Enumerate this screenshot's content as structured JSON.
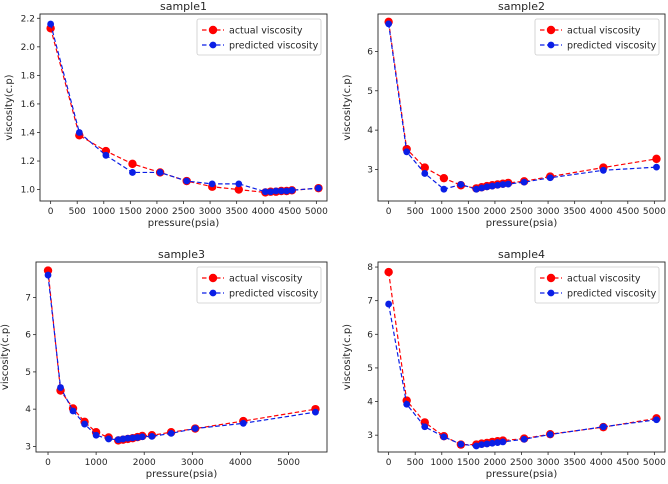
{
  "chart_data": [
    {
      "type": "line",
      "title": "sample1",
      "xlabel": "pressure(psia)",
      "ylabel": "viscosity(c.p)",
      "xlim": [
        -200,
        5200
      ],
      "ylim": [
        0.92,
        2.23
      ],
      "xticks": [
        0,
        500,
        1000,
        1500,
        2000,
        2500,
        3000,
        3500,
        4000,
        4500,
        5000
      ],
      "yticks": [
        1.0,
        1.2,
        1.4,
        1.6,
        1.8,
        2.0,
        2.2
      ],
      "ytick_decimals": 1,
      "legend_position": "top-right",
      "series": [
        {
          "name": "actual viscosity",
          "color": "#ff0000",
          "x": [
            0,
            540,
            1040,
            1540,
            2060,
            2560,
            3040,
            3540,
            4040,
            4140,
            4240,
            4340,
            4440,
            4540,
            5040
          ],
          "y": [
            2.13,
            1.38,
            1.27,
            1.18,
            1.12,
            1.06,
            1.02,
            1.0,
            0.98,
            0.985,
            0.985,
            0.99,
            0.99,
            0.995,
            1.01
          ]
        },
        {
          "name": "predicted viscosity",
          "color": "#0a1ee6",
          "x": [
            0,
            540,
            1040,
            1540,
            2060,
            2560,
            3040,
            3540,
            4040,
            4140,
            4240,
            4340,
            4440,
            4540,
            5040
          ],
          "y": [
            2.16,
            1.4,
            1.24,
            1.12,
            1.12,
            1.06,
            1.04,
            1.04,
            0.985,
            0.985,
            0.99,
            0.99,
            0.99,
            0.995,
            1.01
          ]
        }
      ]
    },
    {
      "type": "line",
      "title": "sample2",
      "xlabel": "pressure(psia)",
      "ylabel": "viscosity(c.p)",
      "xlim": [
        -200,
        5200
      ],
      "ylim": [
        2.2,
        6.95
      ],
      "xticks": [
        0,
        500,
        1000,
        1500,
        2000,
        2500,
        3000,
        3500,
        4000,
        4500,
        5000
      ],
      "yticks": [
        3,
        4,
        5,
        6
      ],
      "ytick_decimals": 0,
      "legend_position": "top-right",
      "series": [
        {
          "name": "actual viscosity",
          "color": "#ff0000",
          "x": [
            0,
            340,
            680,
            1040,
            1360,
            1650,
            1750,
            1850,
            1950,
            2050,
            2150,
            2250,
            2550,
            3040,
            4040,
            5040
          ],
          "y": [
            6.75,
            3.52,
            3.05,
            2.78,
            2.6,
            2.52,
            2.55,
            2.58,
            2.6,
            2.62,
            2.64,
            2.66,
            2.7,
            2.82,
            3.05,
            3.27
          ]
        },
        {
          "name": "predicted viscosity",
          "color": "#0a1ee6",
          "x": [
            0,
            340,
            680,
            1040,
            1360,
            1650,
            1750,
            1850,
            1950,
            2050,
            2150,
            2250,
            2550,
            3040,
            4040,
            5040
          ],
          "y": [
            6.7,
            3.45,
            2.9,
            2.5,
            2.62,
            2.5,
            2.53,
            2.56,
            2.58,
            2.6,
            2.62,
            2.63,
            2.68,
            2.79,
            2.98,
            3.06
          ]
        }
      ]
    },
    {
      "type": "line",
      "title": "sample3",
      "xlabel": "pressure(psia)",
      "ylabel": "viscosity(c.p)",
      "xlim": [
        -250,
        5800
      ],
      "ylim": [
        2.85,
        7.95
      ],
      "xticks": [
        0,
        1000,
        2000,
        3000,
        4000,
        5000
      ],
      "yticks": [
        3,
        4,
        5,
        6,
        7
      ],
      "ytick_decimals": 0,
      "legend_position": "top-right",
      "series": [
        {
          "name": "actual viscosity",
          "color": "#ff0000",
          "x": [
            0,
            260,
            520,
            760,
            1000,
            1260,
            1460,
            1560,
            1660,
            1760,
            1860,
            1960,
            2160,
            2560,
            3060,
            4060,
            5560
          ],
          "y": [
            7.72,
            4.5,
            4.02,
            3.66,
            3.38,
            3.24,
            3.16,
            3.18,
            3.2,
            3.22,
            3.25,
            3.28,
            3.3,
            3.38,
            3.48,
            3.68,
            4.0
          ]
        },
        {
          "name": "predicted viscosity",
          "color": "#0a1ee6",
          "x": [
            0,
            260,
            520,
            760,
            1000,
            1260,
            1460,
            1560,
            1660,
            1760,
            1860,
            1960,
            2160,
            2560,
            3060,
            4060,
            5560
          ],
          "y": [
            7.6,
            4.58,
            3.95,
            3.6,
            3.3,
            3.2,
            3.18,
            3.2,
            3.22,
            3.23,
            3.24,
            3.26,
            3.27,
            3.35,
            3.48,
            3.62,
            3.92
          ]
        }
      ]
    },
    {
      "type": "line",
      "title": "sample4",
      "xlabel": "pressure(psia)",
      "ylabel": "viscosity(c.p)",
      "xlim": [
        -200,
        5200
      ],
      "ylim": [
        2.5,
        8.15
      ],
      "xticks": [
        0,
        500,
        1000,
        1500,
        2000,
        2500,
        3000,
        3500,
        4000,
        4500,
        5000
      ],
      "yticks": [
        3,
        4,
        5,
        6,
        7,
        8
      ],
      "ytick_decimals": 0,
      "legend_position": "top-right",
      "series": [
        {
          "name": "actual viscosity",
          "color": "#ff0000",
          "x": [
            0,
            340,
            680,
            1040,
            1360,
            1650,
            1750,
            1850,
            1950,
            2050,
            2150,
            2550,
            3040,
            4040,
            5040
          ],
          "y": [
            7.85,
            4.03,
            3.38,
            2.97,
            2.72,
            2.72,
            2.75,
            2.77,
            2.8,
            2.82,
            2.84,
            2.9,
            3.03,
            3.24,
            3.5
          ]
        },
        {
          "name": "predicted viscosity",
          "color": "#0a1ee6",
          "x": [
            0,
            340,
            680,
            1040,
            1360,
            1650,
            1750,
            1850,
            1950,
            2050,
            2150,
            2550,
            3040,
            4040,
            5040
          ],
          "y": [
            6.9,
            3.92,
            3.25,
            2.95,
            2.73,
            2.68,
            2.72,
            2.74,
            2.76,
            2.78,
            2.8,
            2.88,
            3.02,
            3.25,
            3.46
          ]
        }
      ]
    }
  ]
}
